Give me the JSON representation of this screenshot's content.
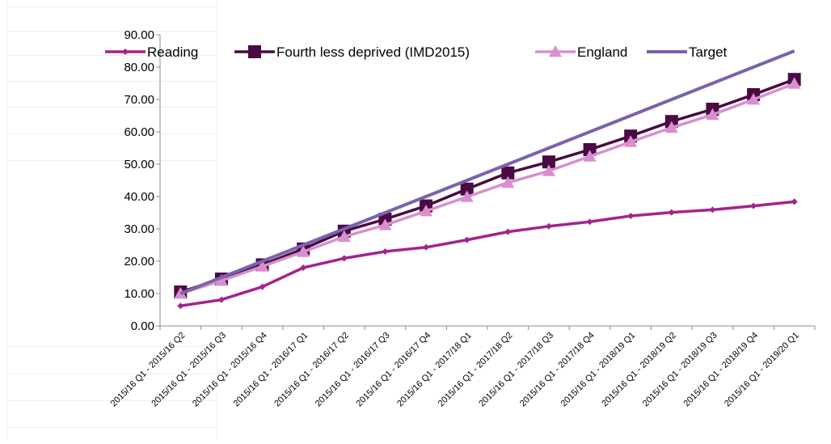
{
  "chart_data": {
    "type": "line",
    "title": "",
    "xlabel": "",
    "ylabel": "",
    "ylim": [
      0,
      90
    ],
    "yticks": [
      "0.00",
      "10.00",
      "20.00",
      "30.00",
      "40.00",
      "50.00",
      "60.00",
      "70.00",
      "80.00",
      "90.00"
    ],
    "legend_position": "top",
    "grid": false,
    "categories": [
      "2015/16 Q1 - 2015/16 Q2",
      "2015/16 Q1 - 2015/16 Q3",
      "2015/16 Q1 - 2015/16 Q4",
      "2015/16 Q1 - 2016/17 Q1",
      "2015/16 Q1 - 2016/17 Q2",
      "2015/16 Q1 - 2016/17 Q3",
      "2015/16 Q1 - 2016/17 Q4",
      "2015/16 Q1 - 2017/18 Q1",
      "2015/16 Q1 - 2017/18 Q2",
      "2015/16 Q1 - 2017/18 Q3",
      "2015/16 Q1 - 2017/18 Q4",
      "2015/16 Q1 - 2018/19 Q1",
      "2015/16 Q1 - 2018/19 Q2",
      "2015/16 Q1 - 2018/19 Q3",
      "2015/16 Q1 - 2018/19 Q4",
      "2015/16 Q1 - 2019/20 Q1"
    ],
    "series": [
      {
        "name": "Reading",
        "color": "#a3248c",
        "marker": "diamond",
        "values": [
          6.2,
          8.1,
          12.1,
          18.0,
          20.9,
          23.0,
          24.3,
          26.6,
          29.1,
          30.8,
          32.2,
          34.0,
          35.1,
          35.9,
          37.1,
          38.4
        ]
      },
      {
        "name": "Fourth less deprived (IMD2015)",
        "color": "#4b0a42",
        "marker": "square",
        "values": [
          10.5,
          14.5,
          18.9,
          23.8,
          29.3,
          33.0,
          37.1,
          42.3,
          47.3,
          50.7,
          54.5,
          58.7,
          63.2,
          67.0,
          71.5,
          76.2
        ]
      },
      {
        "name": "England",
        "color": "#d88fd0",
        "marker": "triangle",
        "values": [
          10.0,
          14.0,
          18.4,
          22.9,
          27.6,
          31.2,
          35.5,
          39.9,
          44.3,
          47.9,
          52.4,
          56.9,
          61.3,
          65.3,
          70.0,
          74.9
        ]
      },
      {
        "name": "Target",
        "color": "#7a62ad",
        "marker": "none",
        "values": [
          10.0,
          15.0,
          20.0,
          25.0,
          30.0,
          35.0,
          40.0,
          45.0,
          50.0,
          55.0,
          60.0,
          65.0,
          70.0,
          75.0,
          80.0,
          85.0
        ]
      }
    ]
  }
}
